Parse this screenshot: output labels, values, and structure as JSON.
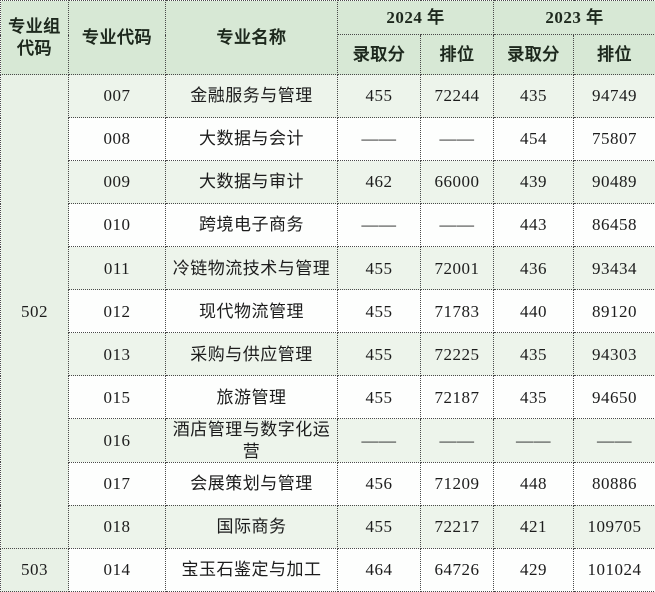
{
  "colors": {
    "header_bg": "#d7e8d5",
    "tint_row_bg": "#edf4eb",
    "group_col_bg": "#e8f1e6",
    "plain_row_bg": "#fdfefd",
    "border": "#4a4a4a",
    "text": "#1c1c1c"
  },
  "table": {
    "headers": {
      "group_code": "专业组代码",
      "major_code": "专业代码",
      "major_name": "专业名称",
      "year_2024": "2024 年",
      "year_2023": "2023 年",
      "score_2024": "录取分",
      "rank_2024": "排位",
      "score_2023": "录取分",
      "rank_2023": "排位"
    },
    "groups": [
      {
        "code": "502",
        "rows": [
          {
            "major_code": "007",
            "major_name": "金融服务与管理",
            "score_2024": "455",
            "rank_2024": "72244",
            "score_2023": "435",
            "rank_2023": "94749"
          },
          {
            "major_code": "008",
            "major_name": "大数据与会计",
            "score_2024": "——",
            "rank_2024": "——",
            "score_2023": "454",
            "rank_2023": "75807"
          },
          {
            "major_code": "009",
            "major_name": "大数据与审计",
            "score_2024": "462",
            "rank_2024": "66000",
            "score_2023": "439",
            "rank_2023": "90489"
          },
          {
            "major_code": "010",
            "major_name": "跨境电子商务",
            "score_2024": "——",
            "rank_2024": "——",
            "score_2023": "443",
            "rank_2023": "86458"
          },
          {
            "major_code": "011",
            "major_name": "冷链物流技术与管理",
            "score_2024": "455",
            "rank_2024": "72001",
            "score_2023": "436",
            "rank_2023": "93434"
          },
          {
            "major_code": "012",
            "major_name": "现代物流管理",
            "score_2024": "455",
            "rank_2024": "71783",
            "score_2023": "440",
            "rank_2023": "89120"
          },
          {
            "major_code": "013",
            "major_name": "采购与供应管理",
            "score_2024": "455",
            "rank_2024": "72225",
            "score_2023": "435",
            "rank_2023": "94303"
          },
          {
            "major_code": "015",
            "major_name": "旅游管理",
            "score_2024": "455",
            "rank_2024": "72187",
            "score_2023": "435",
            "rank_2023": "94650"
          },
          {
            "major_code": "016",
            "major_name": "酒店管理与数字化运营",
            "score_2024": "——",
            "rank_2024": "——",
            "score_2023": "——",
            "rank_2023": "——"
          },
          {
            "major_code": "017",
            "major_name": "会展策划与管理",
            "score_2024": "456",
            "rank_2024": "71209",
            "score_2023": "448",
            "rank_2023": "80886"
          },
          {
            "major_code": "018",
            "major_name": "国际商务",
            "score_2024": "455",
            "rank_2024": "72217",
            "score_2023": "421",
            "rank_2023": "109705"
          }
        ]
      },
      {
        "code": "503",
        "rows": [
          {
            "major_code": "014",
            "major_name": "宝玉石鉴定与加工",
            "score_2024": "464",
            "rank_2024": "64726",
            "score_2023": "429",
            "rank_2023": "101024"
          }
        ]
      }
    ]
  }
}
